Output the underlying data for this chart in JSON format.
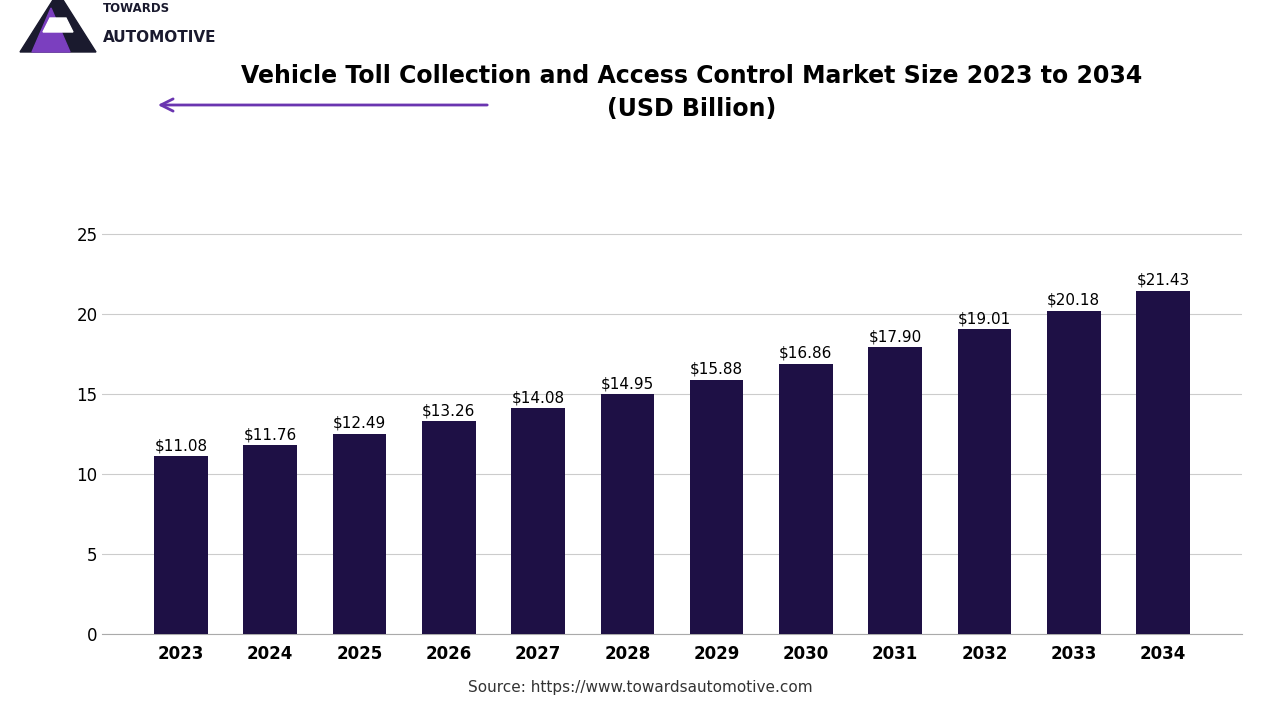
{
  "title_line1": "Vehicle Toll Collection and Access Control Market Size 2023 to 2034",
  "title_line2": "(USD Billion)",
  "years": [
    2023,
    2024,
    2025,
    2026,
    2027,
    2028,
    2029,
    2030,
    2031,
    2032,
    2033,
    2034
  ],
  "values": [
    11.08,
    11.76,
    12.49,
    13.26,
    14.08,
    14.95,
    15.88,
    16.86,
    17.9,
    19.01,
    20.18,
    21.43
  ],
  "labels": [
    "$11.08",
    "$11.76",
    "$12.49",
    "$13.26",
    "$14.08",
    "$14.95",
    "$15.88",
    "$16.86",
    "$17.90",
    "$19.01",
    "$20.18",
    "$21.43"
  ],
  "bar_color": "#1e1045",
  "background_color": "#ffffff",
  "yticks": [
    0,
    5,
    10,
    15,
    20,
    25
  ],
  "ylim": [
    0,
    27
  ],
  "grid_color": "#cccccc",
  "source_text": "Source: https://www.towardsautomotive.com",
  "bottom_bar_color": "#5b1f8a",
  "arrow_color": "#6a35b0",
  "title_fontsize": 17,
  "label_fontsize": 11,
  "tick_fontsize": 12,
  "source_fontsize": 11
}
